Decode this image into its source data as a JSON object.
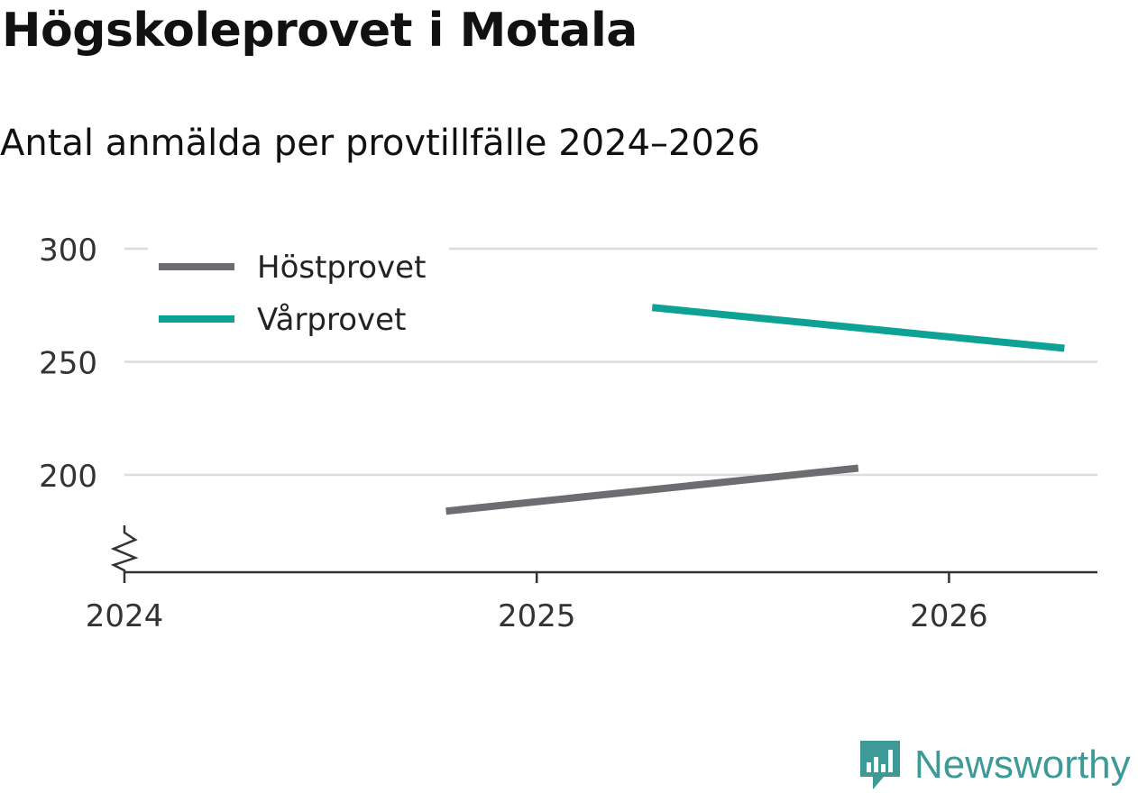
{
  "title": "Högskoleprovet i Motala",
  "subtitle": "Antal anmälda per provtillfälle 2024–2026",
  "brand": {
    "name": "Newsworthy",
    "color": "#3d9a96"
  },
  "chart_data": {
    "type": "line",
    "title": "Högskoleprovet i Motala",
    "subtitle": "Antal anmälda per provtillfälle 2024–2026",
    "xlabel": "",
    "ylabel": "",
    "xlim": [
      2024,
      2026.36
    ],
    "ylim": [
      157,
      300
    ],
    "y_axis_break": true,
    "grid": true,
    "legend_position": "top-left",
    "x_ticks": [
      {
        "value": 2024,
        "label": "2024"
      },
      {
        "value": 2025,
        "label": "2025"
      },
      {
        "value": 2026,
        "label": "2026"
      }
    ],
    "y_ticks": [
      {
        "value": 200,
        "label": "200"
      },
      {
        "value": 250,
        "label": "250"
      },
      {
        "value": 300,
        "label": "300"
      }
    ],
    "series": [
      {
        "name": "Höstprovet",
        "color": "#6d6c71",
        "points": [
          {
            "x": 2024.78,
            "y": 184
          },
          {
            "x": 2025.78,
            "y": 203
          }
        ]
      },
      {
        "name": "Vårprovet",
        "color": "#0ea294",
        "points": [
          {
            "x": 2025.28,
            "y": 274
          },
          {
            "x": 2026.28,
            "y": 256
          }
        ]
      }
    ]
  }
}
